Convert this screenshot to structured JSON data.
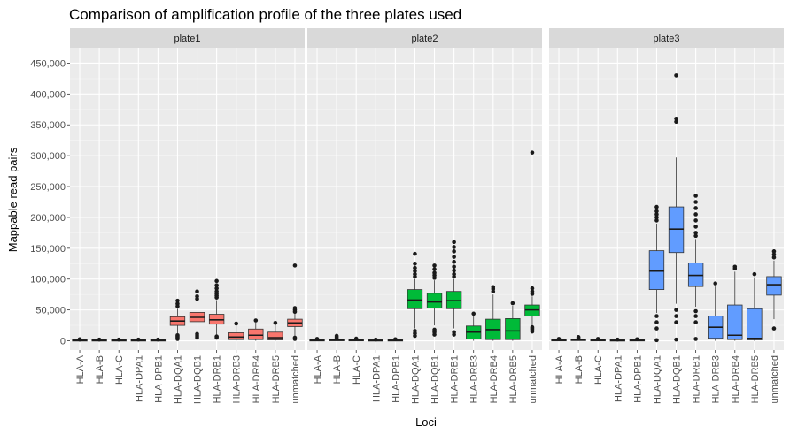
{
  "chart_data": {
    "type": "box",
    "title": "Comparison of amplification profile of the three plates used",
    "xlabel": "Loci",
    "ylabel": "Mappable read pairs",
    "ylim": [
      -15000,
      475000
    ],
    "yticks": [
      0,
      50000,
      100000,
      150000,
      200000,
      250000,
      300000,
      350000,
      400000,
      450000
    ],
    "ytick_labels": [
      "0",
      "50,000",
      "100,000",
      "150,000",
      "200,000",
      "250,000",
      "300,000",
      "350,000",
      "400,000",
      "450,000"
    ],
    "categories": [
      "HLA-A",
      "HLA-B",
      "HLA-C",
      "HLA-DPA1",
      "HLA-DPB1",
      "HLA-DQA1",
      "HLA-DQB1",
      "HLA-DRB1",
      "HLA-DRB3",
      "HLA-DRB4",
      "HLA-DRB5",
      "unmatched"
    ],
    "grid": true,
    "legend": "none",
    "facets": [
      {
        "name": "plate1",
        "color": "#F8766D",
        "boxes": [
          {
            "min": 0,
            "q1": 300,
            "median": 600,
            "q3": 900,
            "max": 1500,
            "outliers": [
              2000,
              2500
            ]
          },
          {
            "min": 0,
            "q1": 300,
            "median": 600,
            "q3": 900,
            "max": 1500,
            "outliers": [
              2000
            ]
          },
          {
            "min": 0,
            "q1": 300,
            "median": 600,
            "q3": 900,
            "max": 1500,
            "outliers": [
              2000
            ]
          },
          {
            "min": 0,
            "q1": 300,
            "median": 600,
            "q3": 900,
            "max": 1500,
            "outliers": [
              2000
            ]
          },
          {
            "min": 0,
            "q1": 300,
            "median": 600,
            "q3": 900,
            "max": 1500,
            "outliers": [
              2000
            ]
          },
          {
            "min": 12000,
            "q1": 25000,
            "median": 32000,
            "q3": 39000,
            "max": 52000,
            "outliers": [
              3000,
              5000,
              7000,
              9000,
              56000,
              60000,
              65000
            ]
          },
          {
            "min": 14000,
            "q1": 31000,
            "median": 38000,
            "q3": 46000,
            "max": 65000,
            "outliers": [
              5000,
              8000,
              11000,
              68000,
              72000,
              80000
            ]
          },
          {
            "min": 10000,
            "q1": 27000,
            "median": 34000,
            "q3": 43000,
            "max": 66000,
            "outliers": [
              5000,
              7000,
              70000,
              73000,
              76000,
              80000,
              85000,
              90000,
              97000
            ]
          },
          {
            "min": 0,
            "q1": 2000,
            "median": 6000,
            "q3": 13000,
            "max": 25000,
            "outliers": [
              28000
            ]
          },
          {
            "min": 0,
            "q1": 2000,
            "median": 9000,
            "q3": 19000,
            "max": 30000,
            "outliers": [
              33000
            ]
          },
          {
            "min": 0,
            "q1": 1500,
            "median": 5000,
            "q3": 14000,
            "max": 26000,
            "outliers": [
              29000
            ]
          },
          {
            "min": 7000,
            "q1": 23000,
            "median": 29000,
            "q3": 35000,
            "max": 44000,
            "outliers": [
              3000,
              5000,
              47000,
              50000,
              53000,
              122000
            ]
          }
        ]
      },
      {
        "name": "plate2",
        "color": "#00BA38",
        "boxes": [
          {
            "min": 0,
            "q1": 300,
            "median": 700,
            "q3": 1200,
            "max": 2000,
            "outliers": [
              3000
            ]
          },
          {
            "min": 0,
            "q1": 400,
            "median": 1000,
            "q3": 1800,
            "max": 3000,
            "outliers": [
              4000,
              6000,
              8000
            ]
          },
          {
            "min": 0,
            "q1": 300,
            "median": 800,
            "q3": 1500,
            "max": 2500,
            "outliers": [
              3500
            ]
          },
          {
            "min": 0,
            "q1": 200,
            "median": 500,
            "q3": 900,
            "max": 1500,
            "outliers": [
              2000
            ]
          },
          {
            "min": 0,
            "q1": 300,
            "median": 600,
            "q3": 1000,
            "max": 1800,
            "outliers": [
              2500
            ]
          },
          {
            "min": 20000,
            "q1": 52000,
            "median": 66000,
            "q3": 83000,
            "max": 100000,
            "outliers": [
              8000,
              12000,
              16000,
              104000,
              108000,
              113000,
              118000,
              125000,
              141000
            ]
          },
          {
            "min": 25000,
            "q1": 53000,
            "median": 63000,
            "q3": 77000,
            "max": 98000,
            "outliers": [
              10000,
              14000,
              18000,
              102000,
              106000,
              110000,
              116000,
              122000
            ]
          },
          {
            "min": 20000,
            "q1": 52000,
            "median": 65000,
            "q3": 80000,
            "max": 100000,
            "outliers": [
              10000,
              14000,
              104000,
              108000,
              114000,
              120000,
              128000,
              136000,
              145000,
              152000,
              160000
            ]
          },
          {
            "min": 0,
            "q1": 3000,
            "median": 14000,
            "q3": 24000,
            "max": 40000,
            "outliers": [
              44000
            ]
          },
          {
            "min": 0,
            "q1": 2000,
            "median": 18000,
            "q3": 35000,
            "max": 75000,
            "outliers": [
              80000,
              84000,
              87000
            ]
          },
          {
            "min": 0,
            "q1": 2000,
            "median": 16000,
            "q3": 36000,
            "max": 57000,
            "outliers": [
              61000
            ]
          },
          {
            "min": 25000,
            "q1": 40000,
            "median": 50000,
            "q3": 58000,
            "max": 72000,
            "outliers": [
              15000,
              18000,
              20000,
              22000,
              76000,
              80000,
              85000,
              305000
            ]
          }
        ]
      },
      {
        "name": "plate3",
        "color": "#619CFF",
        "boxes": [
          {
            "min": 0,
            "q1": 400,
            "median": 800,
            "q3": 1400,
            "max": 2500,
            "outliers": [
              3000
            ]
          },
          {
            "min": 0,
            "q1": 500,
            "median": 1200,
            "q3": 2200,
            "max": 3500,
            "outliers": [
              4500,
              6000
            ]
          },
          {
            "min": 0,
            "q1": 300,
            "median": 800,
            "q3": 1500,
            "max": 2500,
            "outliers": [
              3000
            ]
          },
          {
            "min": 0,
            "q1": 200,
            "median": 500,
            "q3": 900,
            "max": 1500,
            "outliers": [
              2000
            ]
          },
          {
            "min": 0,
            "q1": 300,
            "median": 700,
            "q3": 1200,
            "max": 2000,
            "outliers": [
              2500
            ]
          },
          {
            "min": 45000,
            "q1": 83000,
            "median": 113000,
            "q3": 146000,
            "max": 190000,
            "outliers": [
              1000,
              20000,
              30000,
              40000,
              195000,
              200000,
              205000,
              210000,
              217000
            ]
          },
          {
            "min": 60000,
            "q1": 143000,
            "median": 181000,
            "q3": 217000,
            "max": 297000,
            "outliers": [
              2000,
              30000,
              40000,
              50000,
              355000,
              360000,
              430000
            ]
          },
          {
            "min": 55000,
            "q1": 88000,
            "median": 106000,
            "q3": 126000,
            "max": 165000,
            "outliers": [
              3000,
              30000,
              40000,
              48000,
              170000,
              175000,
              185000,
              195000,
              205000,
              215000,
              225000,
              235000
            ]
          },
          {
            "min": 0,
            "q1": 4000,
            "median": 22000,
            "q3": 40000,
            "max": 88000,
            "outliers": [
              93000
            ]
          },
          {
            "min": 0,
            "q1": 2000,
            "median": 9000,
            "q3": 58000,
            "max": 112000,
            "outliers": [
              117000,
              120000
            ]
          },
          {
            "min": 0,
            "q1": 1500,
            "median": 4000,
            "q3": 52000,
            "max": 103000,
            "outliers": [
              108000
            ]
          },
          {
            "min": 35000,
            "q1": 74000,
            "median": 91000,
            "q3": 104000,
            "max": 130000,
            "outliers": [
              20000,
              135000,
              140000,
              145000
            ]
          }
        ]
      }
    ]
  }
}
